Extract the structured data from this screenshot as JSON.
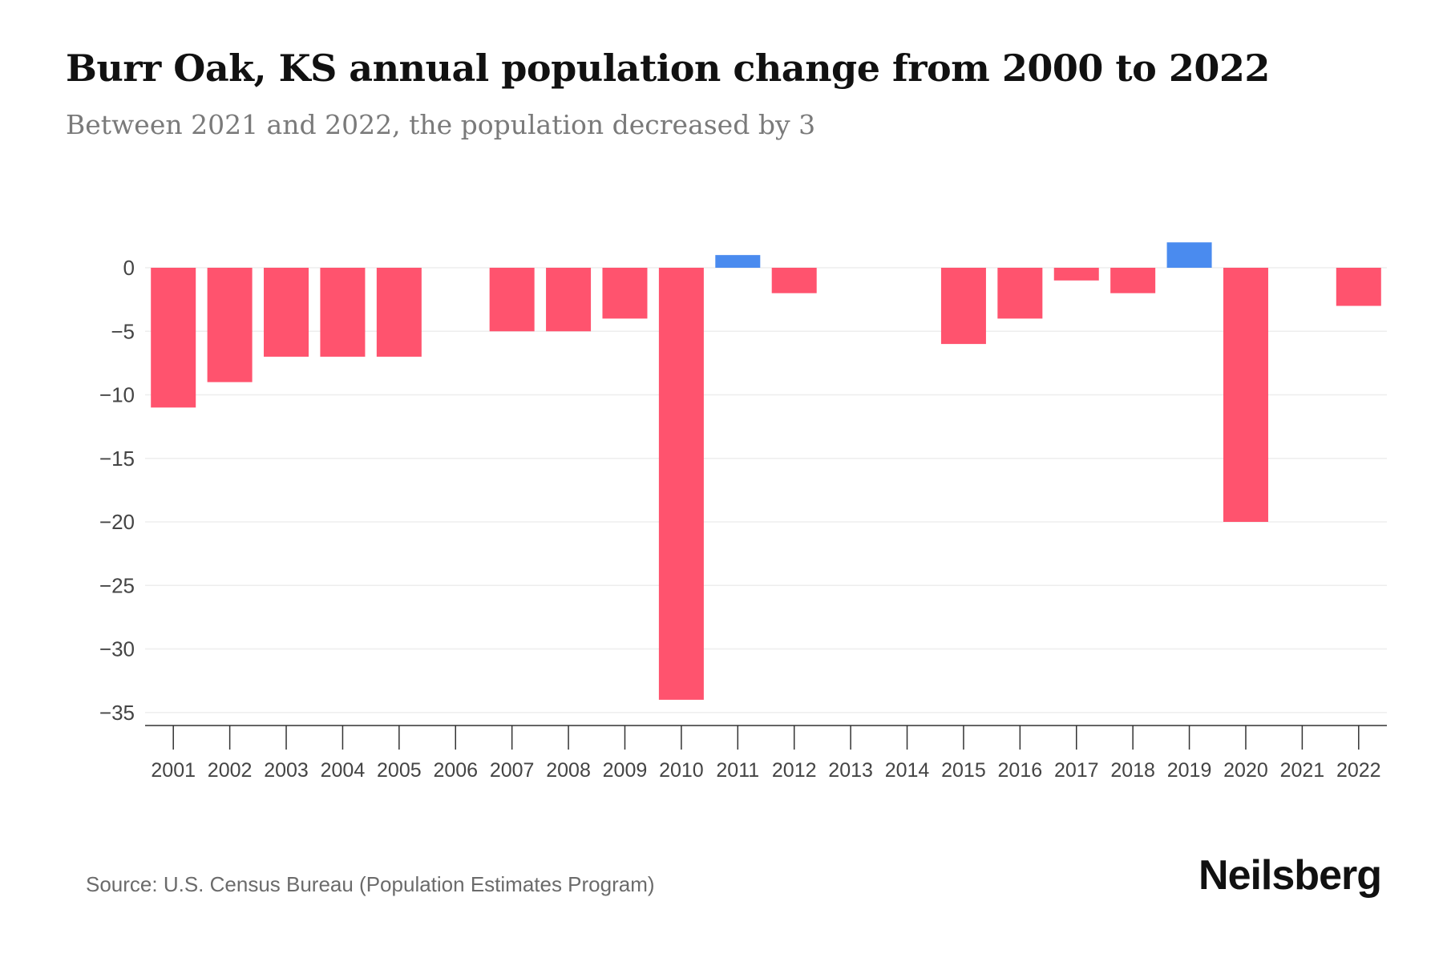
{
  "title": "Burr Oak, KS annual population change from 2000 to 2022",
  "subtitle": "Between 2021 and 2022, the population decreased by 3",
  "source": "Source: U.S. Census Bureau (Population Estimates Program)",
  "brand": "Neilsberg",
  "colors": {
    "negative": "#ff536e",
    "positive": "#4a8bef",
    "grid": "#eeeeee",
    "axis": "#333333",
    "tick_text": "#444444"
  },
  "chart_data": {
    "type": "bar",
    "title": "Burr Oak, KS annual population change from 2000 to 2022",
    "xlabel": "",
    "ylabel": "",
    "categories": [
      "2001",
      "2002",
      "2003",
      "2004",
      "2005",
      "2006",
      "2007",
      "2008",
      "2009",
      "2010",
      "2011",
      "2012",
      "2013",
      "2014",
      "2015",
      "2016",
      "2017",
      "2018",
      "2019",
      "2020",
      "2021",
      "2022"
    ],
    "values": [
      -11,
      -9,
      -7,
      -7,
      -7,
      0,
      -5,
      -5,
      -4,
      -34,
      1,
      -2,
      0,
      0,
      -6,
      -4,
      -1,
      -2,
      2,
      -20,
      0,
      -3
    ],
    "ylim": [
      -36,
      2
    ],
    "yticks": [
      0,
      -5,
      -10,
      -15,
      -20,
      -25,
      -30,
      -35
    ],
    "ytick_labels": [
      "0",
      "−5",
      "−10",
      "−15",
      "−20",
      "−25",
      "−30",
      "−35"
    ],
    "grid": true,
    "legend": "none"
  }
}
